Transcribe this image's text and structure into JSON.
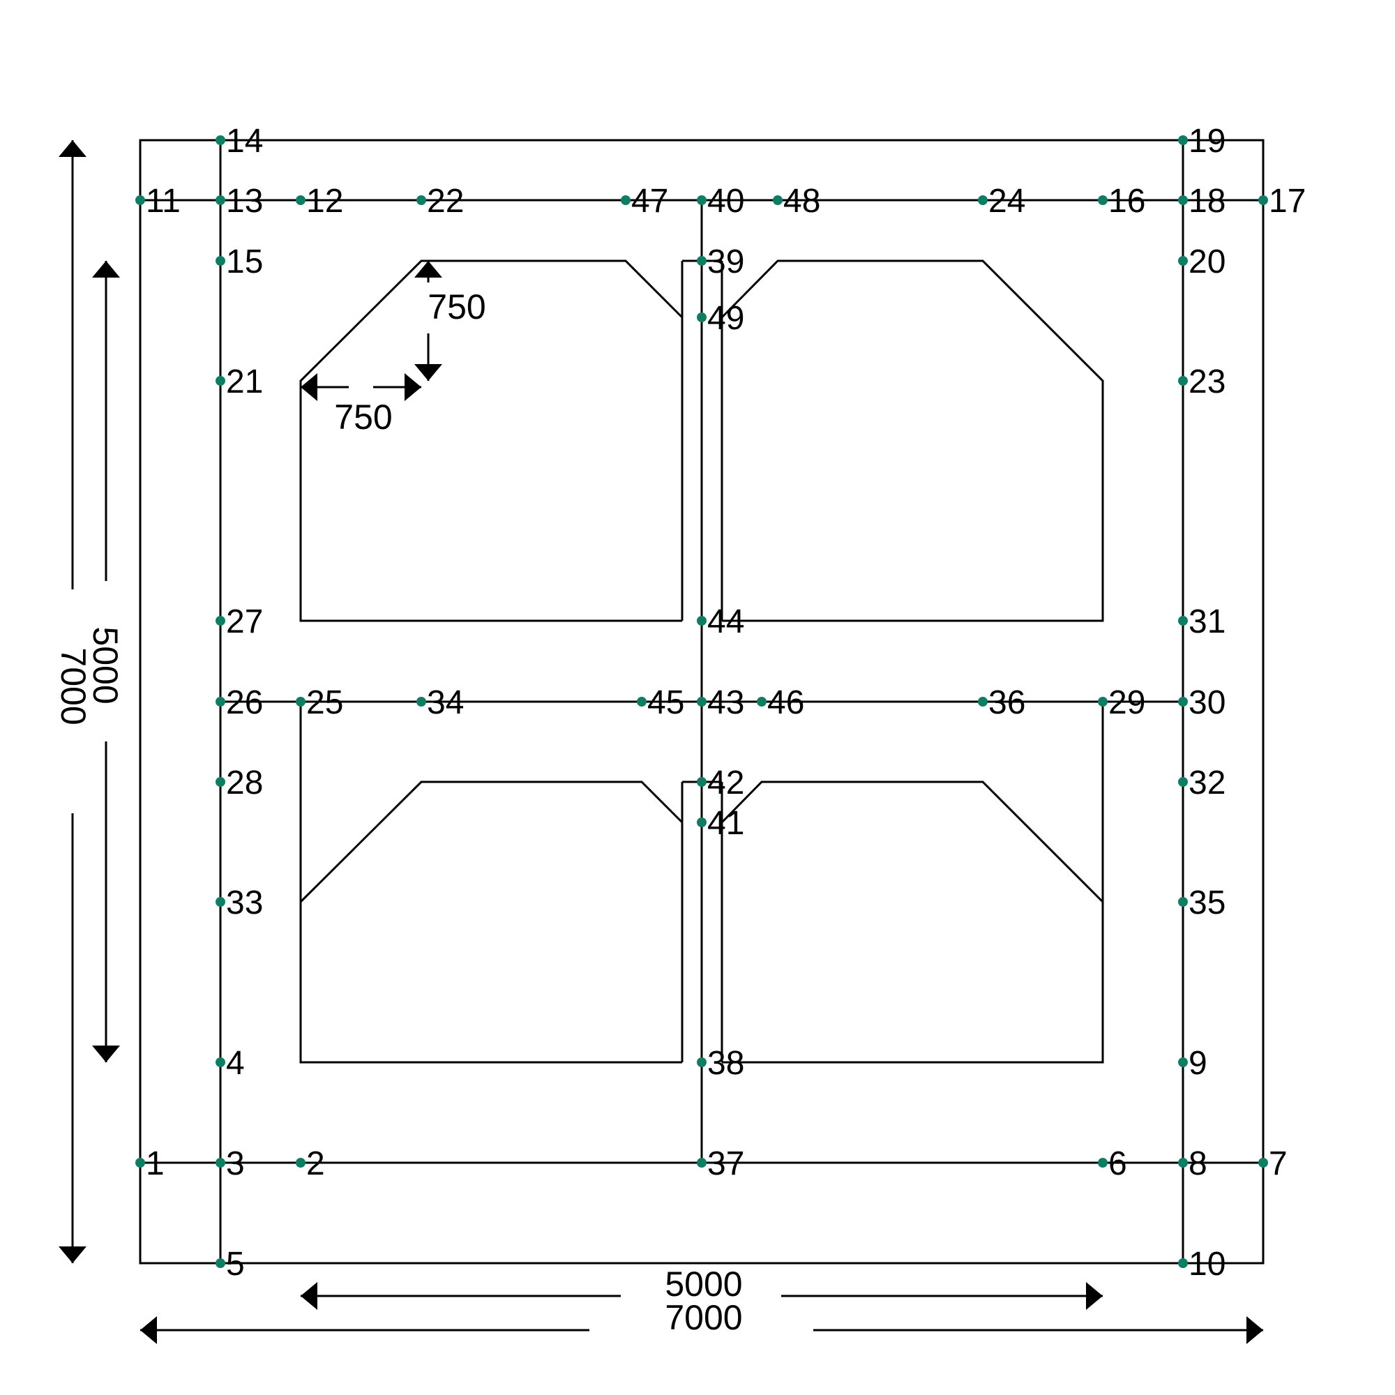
{
  "colors": {
    "node_dot": "#0f7d64",
    "line": "#000000",
    "background": "#ffffff"
  },
  "dimensions": {
    "bottom_inner": "5000",
    "bottom_outer": "7000",
    "left_inner": "5000",
    "left_outer": "7000",
    "chamfer_horizontal": "750",
    "chamfer_vertical": "750"
  },
  "nodes": [
    "1",
    "2",
    "3",
    "4",
    "5",
    "6",
    "7",
    "8",
    "9",
    "10",
    "11",
    "12",
    "13",
    "14",
    "15",
    "16",
    "17",
    "18",
    "19",
    "20",
    "21",
    "22",
    "23",
    "24",
    "25",
    "26",
    "27",
    "28",
    "29",
    "30",
    "31",
    "32",
    "33",
    "34",
    "35",
    "36",
    "37",
    "38",
    "39",
    "40",
    "41",
    "42",
    "43",
    "44",
    "45",
    "46",
    "47",
    "48",
    "49"
  ]
}
